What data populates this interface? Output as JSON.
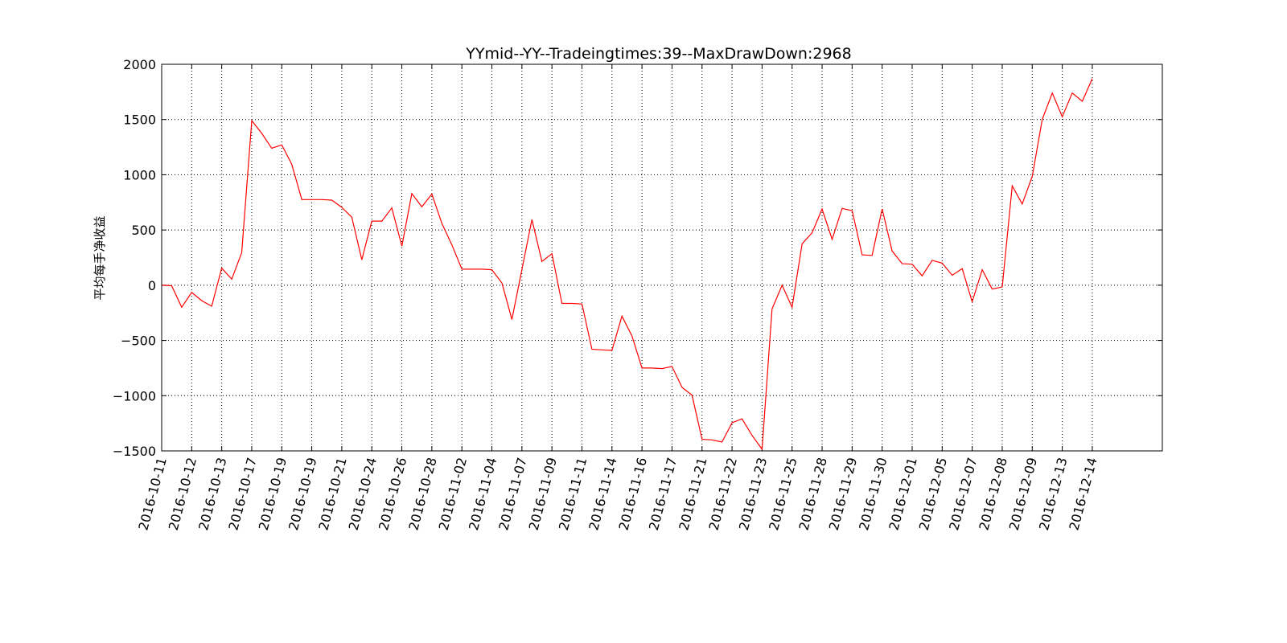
{
  "chart_data": {
    "type": "line",
    "title": "YYmid--YY--Tradeingtimes:39--MaxDrawDown:2968",
    "xlabel": "",
    "ylabel": "平均每手净收益",
    "ylim": [
      -1500,
      2000
    ],
    "yticks": [
      2000,
      1500,
      1000,
      500,
      0,
      -500,
      -1000,
      -1500
    ],
    "ytick_labels": [
      "2000",
      "1500",
      "1000",
      "500",
      "0",
      "−500",
      "−1000",
      "−1500"
    ],
    "xlim": [
      0,
      100
    ],
    "xticks": [
      0,
      3,
      6,
      9,
      12,
      15,
      18,
      21,
      24,
      27,
      30,
      33,
      36,
      39,
      42,
      45,
      48,
      51,
      54,
      57,
      60,
      63,
      66,
      69,
      72,
      75,
      78,
      81,
      84,
      87,
      90,
      93
    ],
    "xtick_labels": [
      "2016-10-11",
      "2016-10-12",
      "2016-10-13",
      "2016-10-17",
      "2016-10-19",
      "2016-10-19",
      "2016-10-21",
      "2016-10-24",
      "2016-10-26",
      "2016-10-28",
      "2016-11-02",
      "2016-11-04",
      "2016-11-07",
      "2016-11-09",
      "2016-11-11",
      "2016-11-14",
      "2016-11-16",
      "2016-11-17",
      "2016-11-21",
      "2016-11-22",
      "2016-11-23",
      "2016-11-25",
      "2016-11-28",
      "2016-11-29",
      "2016-11-30",
      "2016-12-01",
      "2016-12-05",
      "2016-12-07",
      "2016-12-08",
      "2016-12-09",
      "2016-12-13",
      "2016-12-14"
    ],
    "grid": true,
    "series": [
      {
        "color": "#ff0000",
        "values": [
          0,
          -5,
          -200,
          -65,
          -140,
          -190,
          155,
          55,
          295,
          1490,
          1375,
          1240,
          1270,
          1095,
          775,
          775,
          775,
          770,
          705,
          615,
          230,
          580,
          580,
          700,
          355,
          830,
          710,
          825,
          560,
          365,
          145,
          145,
          145,
          140,
          20,
          -310,
          140,
          595,
          215,
          285,
          -165,
          -165,
          -170,
          -580,
          -585,
          -590,
          -280,
          -460,
          -750,
          -750,
          -755,
          -735,
          -925,
          -995,
          -1395,
          -1400,
          -1420,
          -1245,
          -1210,
          -1360,
          -1485,
          -215,
          0,
          -200,
          375,
          475,
          690,
          415,
          695,
          675,
          275,
          270,
          690,
          310,
          195,
          190,
          85,
          225,
          200,
          90,
          150,
          -150,
          140,
          -35,
          -15,
          900,
          735,
          985,
          1500,
          1740,
          1525,
          1740,
          1665,
          1870
        ]
      }
    ]
  }
}
